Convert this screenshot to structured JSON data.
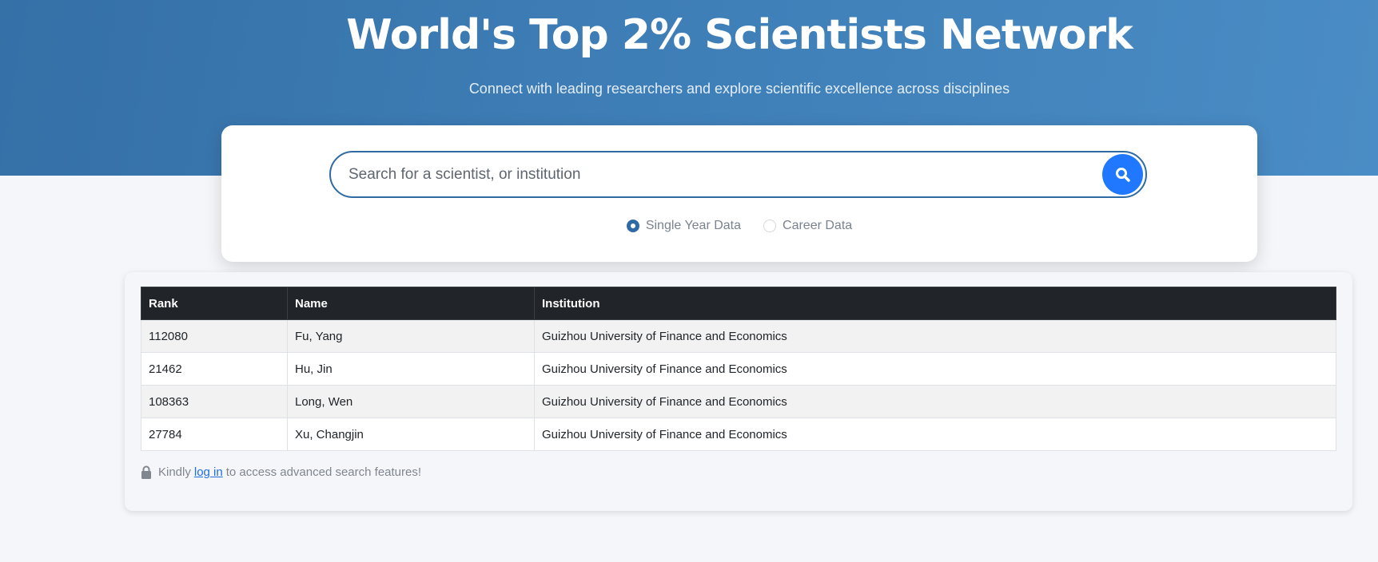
{
  "hero": {
    "title": "World's Top 2% Scientists Network",
    "subtitle": "Connect with leading researchers and explore scientific excellence across disciplines"
  },
  "search": {
    "placeholder": "Search for a scientist, or institution",
    "value": "",
    "button_icon": "search-icon",
    "options": [
      {
        "label": "Single Year Data",
        "selected": true
      },
      {
        "label": "Career Data",
        "selected": false
      }
    ]
  },
  "table": {
    "headers": [
      "Rank",
      "Name",
      "Institution"
    ],
    "rows": [
      [
        "112080",
        "Fu, Yang",
        "Guizhou University of Finance and Economics"
      ],
      [
        "21462",
        "Hu, Jin",
        "Guizhou University of Finance and Economics"
      ],
      [
        "108363",
        "Long, Wen",
        "Guizhou University of Finance and Economics"
      ],
      [
        "27784",
        "Xu, Changjin",
        "Guizhou University of Finance and Economics"
      ]
    ]
  },
  "note": {
    "icon": "lock-icon",
    "prefix": "Kindly",
    "link": "log in",
    "suffix": "to access advanced search features!"
  },
  "colors": {
    "header": "#3a78b0",
    "accent": "#1f78ff",
    "table_head": "#212529"
  }
}
